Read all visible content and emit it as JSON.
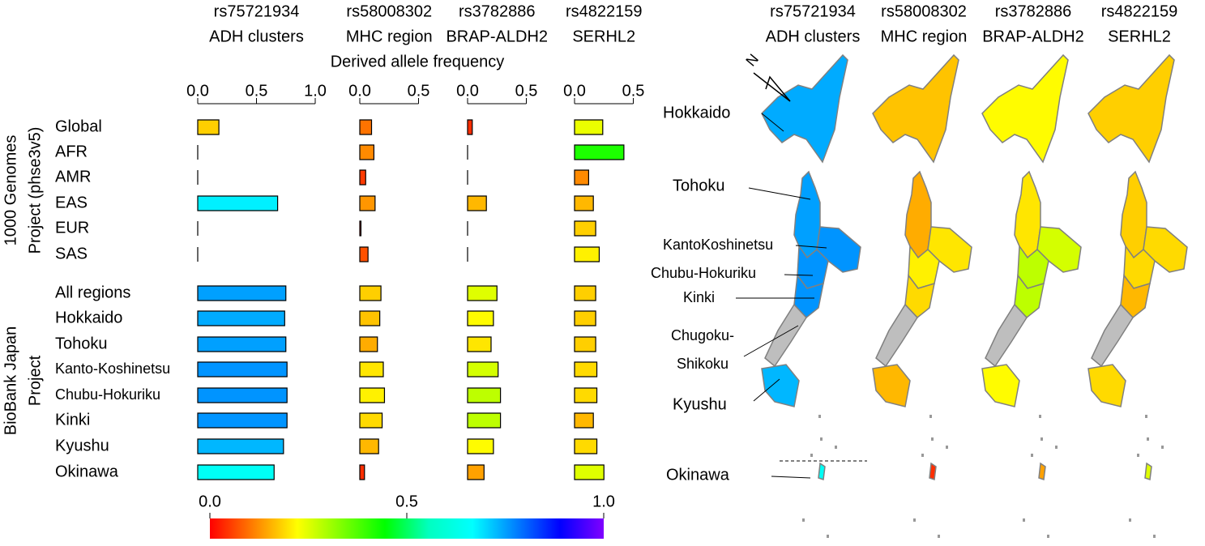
{
  "chart_data": {
    "type": "bar",
    "x_label": "Derived allele frequency",
    "groups": [
      {
        "lines": [
          "1000 Genomes",
          "Project (phse3v5)"
        ]
      },
      {
        "lines": [
          "BioBank Japan",
          "Project"
        ]
      }
    ],
    "categories": [
      "Global",
      "AFR",
      "AMR",
      "EAS",
      "EUR",
      "SAS",
      "All regions",
      "Hokkaido",
      "Tohoku",
      "Kanto-Koshinetsu",
      "Chubu-Hokuriku",
      "Kinki",
      "Kyushu",
      "Okinawa"
    ],
    "panels": [
      {
        "title": [
          "rs75721934",
          "ADH clusters"
        ],
        "xlim": [
          0,
          1
        ],
        "xticks": [
          {
            "value": 0,
            "label": "0.0"
          },
          0.5,
          {
            "value": 1,
            "label": "1.0"
          }
        ],
        "values": [
          0.18,
          0,
          0,
          0.68,
          0,
          0,
          0.75,
          0.74,
          0.75,
          0.76,
          0.76,
          0.76,
          0.73,
          0.65
        ]
      },
      {
        "title": [
          "rs58008302",
          "MHC region"
        ],
        "xlim": [
          0,
          0.5
        ],
        "xticks": [
          {
            "value": 0,
            "label": "0.0"
          },
          0.5
        ],
        "values": [
          0.1,
          0.12,
          0.05,
          0.13,
          0.01,
          0.07,
          0.18,
          0.17,
          0.15,
          0.2,
          0.21,
          0.19,
          0.16,
          0.04
        ]
      },
      {
        "title": [
          "rs3782886",
          "BRAP-ALDH2"
        ],
        "xlim": [
          0,
          0.5
        ],
        "xticks": [
          {
            "value": 0,
            "label": "0.0"
          },
          0.5
        ],
        "values": [
          0.04,
          0,
          0,
          0.16,
          0,
          0,
          0.25,
          0.22,
          0.2,
          0.26,
          0.28,
          0.28,
          0.22,
          0.14
        ]
      },
      {
        "title": [
          "rs4822159",
          "SERHL2"
        ],
        "xlim": [
          0,
          0.5
        ],
        "xticks": [
          {
            "value": 0,
            "label": "0.0"
          },
          0.5
        ],
        "values": [
          0.24,
          0.42,
          0.12,
          0.16,
          0.18,
          0.21,
          0.18,
          0.18,
          0.18,
          0.19,
          0.19,
          0.16,
          0.19,
          0.25
        ]
      }
    ],
    "colorbar": {
      "xlim": [
        0,
        1
      ],
      "xticks": [
        {
          "value": 0,
          "label": "0.0"
        },
        0.5,
        {
          "value": 1,
          "label": "1.0"
        }
      ],
      "colors": [
        "#ff0000",
        "#ff8000",
        "#ffff00",
        "#80ff00",
        "#00ff00",
        "#00ffc0",
        "#00ffff",
        "#0080ff",
        "#0000ff",
        "#8000ff"
      ]
    },
    "no_data_color": "#bebebe",
    "compass": "N",
    "map_labels": [
      [
        "Hokkaido"
      ],
      [
        "Tohoku"
      ],
      [
        "KantoKoshinetsu"
      ],
      [
        "Chubu-Hokuriku"
      ],
      [
        "Kinki"
      ],
      [
        "Chugoku-",
        "Shikoku"
      ],
      [
        "Kyushu"
      ],
      [
        "Okinawa"
      ]
    ]
  }
}
